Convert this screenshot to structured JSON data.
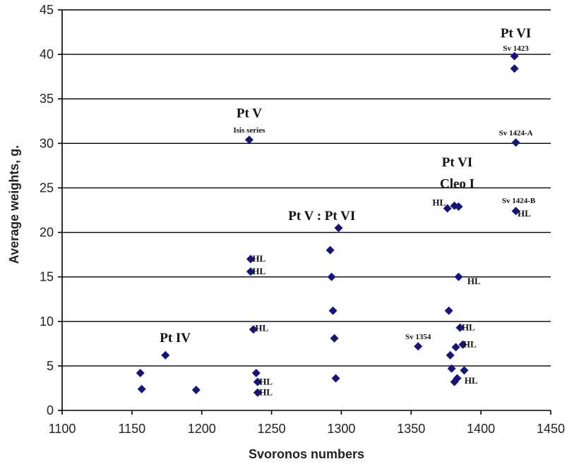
{
  "chart_data": {
    "type": "scatter",
    "xlabel": "Svoronos numbers",
    "ylabel": "Average weights, g.",
    "xlim": [
      1100,
      1450
    ],
    "ylim": [
      0,
      45
    ],
    "x_ticks": [
      "1100",
      "1150",
      "1200",
      "1250",
      "1300",
      "1350",
      "1400",
      "1450"
    ],
    "y_ticks": [
      "0",
      "5",
      "10",
      "15",
      "20",
      "25",
      "30",
      "35",
      "40",
      "45"
    ],
    "grid": "horizontal",
    "marker": "diamond",
    "marker_color": "#14147a",
    "points": [
      {
        "x": 1156,
        "y": 4.2
      },
      {
        "x": 1157,
        "y": 2.4
      },
      {
        "x": 1174,
        "y": 6.2
      },
      {
        "x": 1196,
        "y": 2.3
      },
      {
        "x": 1234,
        "y": 30.4
      },
      {
        "x": 1235,
        "y": 17.0
      },
      {
        "x": 1235,
        "y": 15.6
      },
      {
        "x": 1237,
        "y": 9.1
      },
      {
        "x": 1239,
        "y": 4.2
      },
      {
        "x": 1240,
        "y": 3.2
      },
      {
        "x": 1240,
        "y": 2.0
      },
      {
        "x": 1292,
        "y": 18.0
      },
      {
        "x": 1293,
        "y": 15.0
      },
      {
        "x": 1294,
        "y": 11.2
      },
      {
        "x": 1295,
        "y": 8.1
      },
      {
        "x": 1296,
        "y": 3.6
      },
      {
        "x": 1298,
        "y": 20.5
      },
      {
        "x": 1355,
        "y": 7.2
      },
      {
        "x": 1376,
        "y": 22.7
      },
      {
        "x": 1377,
        "y": 11.2
      },
      {
        "x": 1378,
        "y": 6.2
      },
      {
        "x": 1379,
        "y": 4.7
      },
      {
        "x": 1381,
        "y": 23.0
      },
      {
        "x": 1381,
        "y": 3.2
      },
      {
        "x": 1382,
        "y": 7.1
      },
      {
        "x": 1383,
        "y": 3.6
      },
      {
        "x": 1384,
        "y": 22.9
      },
      {
        "x": 1384,
        "y": 15.0
      },
      {
        "x": 1385,
        "y": 9.3
      },
      {
        "x": 1387,
        "y": 7.4
      },
      {
        "x": 1388,
        "y": 4.5
      },
      {
        "x": 1424,
        "y": 39.8
      },
      {
        "x": 1424,
        "y": 38.4
      },
      {
        "x": 1425,
        "y": 30.1
      },
      {
        "x": 1425,
        "y": 22.4
      }
    ],
    "annotations": [
      {
        "text": "Pt IV",
        "x": 1181,
        "y": 7.7,
        "style": "big"
      },
      {
        "text": "Pt V",
        "x": 1234,
        "y": 32.9,
        "style": "big"
      },
      {
        "text": "Isis series",
        "x": 1234,
        "y": 31.2,
        "style": "small"
      },
      {
        "text": "Pt V : Pt VI",
        "x": 1286,
        "y": 21.4,
        "style": "big"
      },
      {
        "text": "Pt VI",
        "x": 1383,
        "y": 27.4,
        "style": "big"
      },
      {
        "text": "Cleo I",
        "x": 1383,
        "y": 25.0,
        "style": "big"
      },
      {
        "text": "Pt VI",
        "x": 1425,
        "y": 41.9,
        "style": "big"
      },
      {
        "text": "Sv 1423",
        "x": 1425,
        "y": 40.4,
        "style": "small"
      },
      {
        "text": "Sv 1424-A",
        "x": 1425,
        "y": 30.9,
        "style": "small"
      },
      {
        "text": "Sv 1424-B",
        "x": 1427,
        "y": 23.3,
        "style": "small"
      },
      {
        "text": "Sv 1354",
        "x": 1355,
        "y": 8.0,
        "style": "small"
      },
      {
        "text": "HL",
        "x": 1370,
        "y": 23.0,
        "style": "hl"
      },
      {
        "text": "HL",
        "x": 1431,
        "y": 21.8,
        "style": "hl"
      },
      {
        "text": "HL",
        "x": 1241,
        "y": 16.7,
        "style": "hl"
      },
      {
        "text": "HL",
        "x": 1241,
        "y": 15.3,
        "style": "hl"
      },
      {
        "text": "HL",
        "x": 1395,
        "y": 14.2,
        "style": "hl"
      },
      {
        "text": "HL",
        "x": 1243,
        "y": 8.9,
        "style": "hl"
      },
      {
        "text": "HL",
        "x": 1391,
        "y": 9.0,
        "style": "hl"
      },
      {
        "text": "HL",
        "x": 1392,
        "y": 7.1,
        "style": "hl"
      },
      {
        "text": "HL",
        "x": 1246,
        "y": 2.9,
        "style": "hl"
      },
      {
        "text": "HL",
        "x": 1246,
        "y": 1.7,
        "style": "hl"
      },
      {
        "text": "HL",
        "x": 1393,
        "y": 3.0,
        "style": "hl"
      }
    ]
  }
}
